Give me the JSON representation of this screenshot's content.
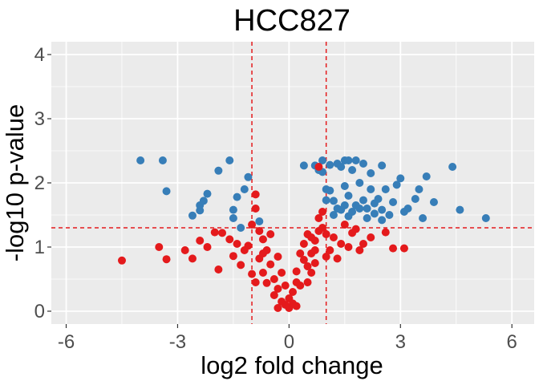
{
  "chart_data": {
    "type": "scatter",
    "title": "HCC827",
    "xlabel": "log2 fold change",
    "ylabel": "-log10 p-value",
    "xlim": [
      -6.4,
      6.6
    ],
    "ylim": [
      -0.2,
      4.2
    ],
    "x_ticks": [
      -6,
      -3,
      0,
      3,
      6
    ],
    "y_ticks": [
      0,
      1,
      2,
      3,
      4
    ],
    "x_tick_labels": [
      "-6",
      "-3",
      "0",
      "3",
      "6"
    ],
    "y_tick_labels": [
      "0",
      "1",
      "2",
      "3",
      "4"
    ],
    "grid": true,
    "legend": "none",
    "thresholds": {
      "log2fc": [
        -1,
        1
      ],
      "neg_log10_p": 1.3
    },
    "colors": {
      "significant": "#377EB8",
      "not_significant": "#E41A1C",
      "threshold_line": "#E41A1C",
      "panel": "#EBEBEB",
      "grid": "#FFFFFF"
    },
    "series": [
      {
        "color": "#377EB8",
        "points": [
          [
            -4.0,
            2.35
          ],
          [
            -3.4,
            2.35
          ],
          [
            -3.3,
            1.87
          ],
          [
            -2.6,
            1.49
          ],
          [
            -2.4,
            1.57
          ],
          [
            -2.4,
            1.65
          ],
          [
            -2.3,
            1.72
          ],
          [
            -2.2,
            1.83
          ],
          [
            -1.9,
            2.19
          ],
          [
            -1.6,
            2.35
          ],
          [
            -1.5,
            1.45
          ],
          [
            -1.5,
            1.58
          ],
          [
            -1.4,
            1.78
          ],
          [
            -1.3,
            1.3
          ],
          [
            -1.2,
            1.9
          ],
          [
            -1.1,
            2.09
          ],
          [
            -0.8,
            1.4
          ],
          [
            0.4,
            2.27
          ],
          [
            0.7,
            2.27
          ],
          [
            0.8,
            2.2
          ],
          [
            0.9,
            2.35
          ],
          [
            0.9,
            2.17
          ],
          [
            1.0,
            1.9
          ],
          [
            1.0,
            1.73
          ],
          [
            1.1,
            1.88
          ],
          [
            1.1,
            2.28
          ],
          [
            1.2,
            1.5
          ],
          [
            1.3,
            2.3
          ],
          [
            1.3,
            1.6
          ],
          [
            1.4,
            2.25
          ],
          [
            1.5,
            2.35
          ],
          [
            1.5,
            1.95
          ],
          [
            1.6,
            2.35
          ],
          [
            1.6,
            1.8
          ],
          [
            1.7,
            2.2
          ],
          [
            1.8,
            2.35
          ],
          [
            1.8,
            1.65
          ],
          [
            1.9,
            2.0
          ],
          [
            2.0,
            1.73
          ],
          [
            2.0,
            2.3
          ],
          [
            2.1,
            1.6
          ],
          [
            2.2,
            1.9
          ],
          [
            2.2,
            2.15
          ],
          [
            2.3,
            1.68
          ],
          [
            2.4,
            1.75
          ],
          [
            2.5,
            2.27
          ],
          [
            2.5,
            1.58
          ],
          [
            2.6,
            1.9
          ],
          [
            2.7,
            1.5
          ],
          [
            2.8,
            1.7
          ],
          [
            2.9,
            1.97
          ],
          [
            3.0,
            2.07
          ],
          [
            3.1,
            1.55
          ],
          [
            3.2,
            1.6
          ],
          [
            3.4,
            1.75
          ],
          [
            3.5,
            1.9
          ],
          [
            3.6,
            1.45
          ],
          [
            3.7,
            2.1
          ],
          [
            3.9,
            1.7
          ],
          [
            4.4,
            2.25
          ],
          [
            4.6,
            1.58
          ],
          [
            5.3,
            1.45
          ],
          [
            1.5,
            1.65
          ],
          [
            1.7,
            1.55
          ],
          [
            1.9,
            1.6
          ],
          [
            2.1,
            1.45
          ],
          [
            2.3,
            1.52
          ],
          [
            2.5,
            1.42
          ],
          [
            1.2,
            1.72
          ],
          [
            1.4,
            1.58
          ],
          [
            1.6,
            1.48
          ]
        ]
      },
      {
        "color": "#E41A1C",
        "points": [
          [
            -4.5,
            0.79
          ],
          [
            -3.5,
            1.0
          ],
          [
            -3.3,
            0.81
          ],
          [
            -2.8,
            0.95
          ],
          [
            -2.6,
            0.82
          ],
          [
            -2.4,
            1.1
          ],
          [
            -2.2,
            1.0
          ],
          [
            -2.0,
            1.23
          ],
          [
            -1.9,
            0.65
          ],
          [
            -1.8,
            1.22
          ],
          [
            -1.6,
            1.12
          ],
          [
            -1.5,
            0.86
          ],
          [
            -1.4,
            1.05
          ],
          [
            -1.3,
            0.72
          ],
          [
            -1.2,
            0.95
          ],
          [
            -1.1,
            1.02
          ],
          [
            -1.0,
            1.35
          ],
          [
            -1.0,
            0.58
          ],
          [
            -0.9,
            1.6
          ],
          [
            -0.9,
            1.82
          ],
          [
            -0.8,
            1.25
          ],
          [
            -0.8,
            0.82
          ],
          [
            -0.7,
            1.12
          ],
          [
            -0.7,
            0.6
          ],
          [
            -0.6,
            0.95
          ],
          [
            -0.6,
            0.44
          ],
          [
            -0.5,
            0.73
          ],
          [
            -0.5,
            1.2
          ],
          [
            -0.4,
            0.5
          ],
          [
            -0.4,
            0.25
          ],
          [
            -0.3,
            0.85
          ],
          [
            -0.3,
            0.35
          ],
          [
            -0.2,
            0.15
          ],
          [
            -0.2,
            0.6
          ],
          [
            -0.1,
            0.1
          ],
          [
            -0.1,
            0.4
          ],
          [
            0.0,
            0.05
          ],
          [
            0.0,
            0.2
          ],
          [
            0.1,
            0.12
          ],
          [
            0.1,
            0.3
          ],
          [
            0.2,
            0.45
          ],
          [
            0.2,
            0.62
          ],
          [
            0.3,
            0.4
          ],
          [
            0.3,
            0.9
          ],
          [
            0.4,
            0.8
          ],
          [
            0.4,
            1.05
          ],
          [
            0.5,
            0.7
          ],
          [
            0.5,
            1.2
          ],
          [
            0.6,
            0.9
          ],
          [
            0.6,
            1.15
          ],
          [
            0.7,
            1.1
          ],
          [
            0.7,
            0.95
          ],
          [
            0.8,
            1.45
          ],
          [
            0.8,
            1.25
          ],
          [
            0.9,
            1.55
          ],
          [
            0.9,
            1.3
          ],
          [
            0.8,
            2.25
          ],
          [
            1.0,
            1.2
          ],
          [
            1.1,
            0.95
          ],
          [
            1.2,
            1.15
          ],
          [
            1.3,
            0.82
          ],
          [
            1.4,
            1.05
          ],
          [
            1.5,
            1.35
          ],
          [
            1.6,
            1.0
          ],
          [
            1.7,
            1.22
          ],
          [
            1.8,
            1.28
          ],
          [
            1.9,
            0.95
          ],
          [
            2.0,
            1.05
          ],
          [
            2.2,
            1.15
          ],
          [
            2.6,
            1.23
          ],
          [
            2.8,
            0.98
          ],
          [
            3.1,
            0.98
          ],
          [
            -0.3,
            0.05
          ],
          [
            0.2,
            0.08
          ],
          [
            0.5,
            0.45
          ],
          [
            0.6,
            0.6
          ],
          [
            -0.7,
            0.9
          ],
          [
            -0.9,
            0.45
          ],
          [
            0.7,
            0.75
          ],
          [
            1.0,
            0.85
          ]
        ]
      }
    ]
  }
}
